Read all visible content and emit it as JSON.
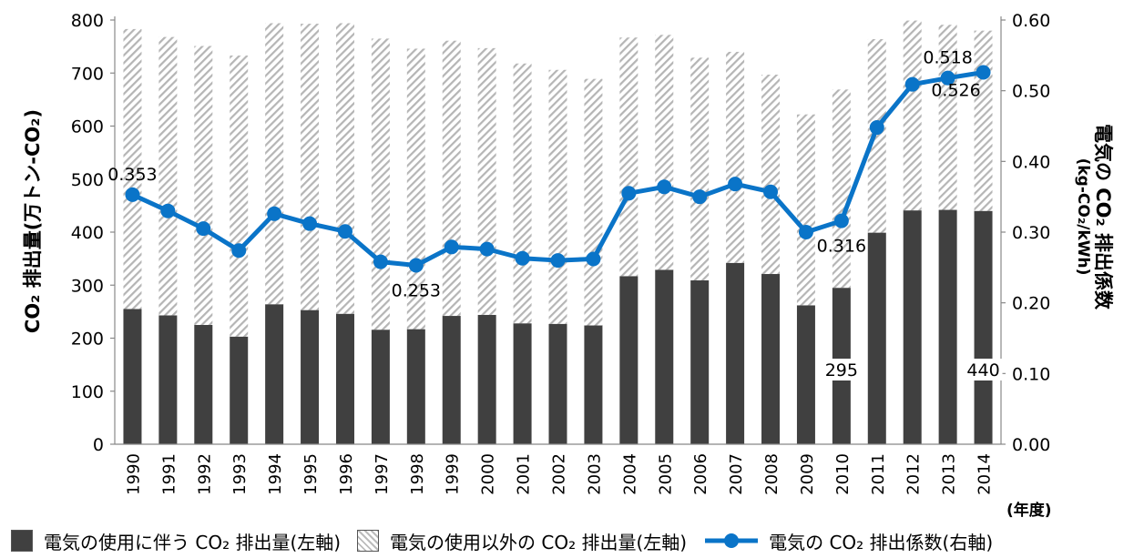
{
  "chart_data": {
    "type": "bar",
    "stacked": true,
    "categories": [
      "1990",
      "1991",
      "1992",
      "1993",
      "1994",
      "1995",
      "1996",
      "1997",
      "1998",
      "1999",
      "2000",
      "2001",
      "2002",
      "2003",
      "2004",
      "2005",
      "2006",
      "2007",
      "2008",
      "2009",
      "2010",
      "2011",
      "2012",
      "2013",
      "2014"
    ],
    "series": [
      {
        "name": "電気の使用に伴う CO₂ 排出量(左軸)",
        "type": "bar",
        "axis": "left",
        "color": "#404040",
        "values": [
          255,
          243,
          225,
          203,
          264,
          253,
          246,
          216,
          217,
          242,
          244,
          228,
          227,
          224,
          317,
          329,
          309,
          342,
          321,
          262,
          295,
          399,
          441,
          442,
          440
        ]
      },
      {
        "name": "電気の使用以外の CO₂ 排出量(左軸)",
        "type": "bar",
        "axis": "left",
        "pattern": "hatch",
        "values": [
          528,
          525,
          526,
          530,
          530,
          540,
          548,
          549,
          529,
          519,
          503,
          490,
          479,
          465,
          450,
          443,
          420,
          398,
          376,
          360,
          374,
          365,
          358,
          349,
          340
        ]
      },
      {
        "name": "電気の CO₂ 排出係数(右軸)",
        "type": "line",
        "axis": "right",
        "color": "#0a74c8",
        "values": [
          0.353,
          0.33,
          0.305,
          0.274,
          0.326,
          0.312,
          0.301,
          0.258,
          0.253,
          0.279,
          0.276,
          0.263,
          0.26,
          0.262,
          0.355,
          0.364,
          0.35,
          0.368,
          0.357,
          0.3,
          0.316,
          0.448,
          0.509,
          0.518,
          0.526
        ]
      }
    ],
    "left_axis": {
      "label": "CO₂ 排出量(万トン-CO₂)",
      "ylim": [
        0,
        800
      ],
      "ticks": [
        "0",
        "100",
        "200",
        "300",
        "400",
        "500",
        "600",
        "700",
        "800"
      ]
    },
    "right_axis": {
      "label": "電気の CO₂ 排出係数",
      "unit": "(kg-CO₂/kWh)",
      "ylim": [
        0,
        0.6
      ],
      "ticks": [
        "0.00",
        "0.10",
        "0.20",
        "0.30",
        "0.40",
        "0.50",
        "0.60"
      ]
    },
    "x_unit": "(年度)",
    "bar_labels": [
      {
        "index": 20,
        "text": "295"
      },
      {
        "index": 24,
        "text": "440"
      }
    ],
    "line_labels": [
      {
        "index": 0,
        "text": "0.353"
      },
      {
        "index": 8,
        "text": "0.253"
      },
      {
        "index": 20,
        "text": "0.316"
      },
      {
        "index": 23,
        "text": "0.518"
      },
      {
        "index": 24,
        "text": "0.526"
      }
    ],
    "grid": false,
    "legend_position": "bottom"
  }
}
